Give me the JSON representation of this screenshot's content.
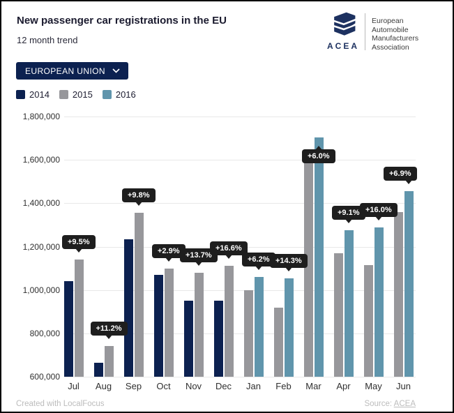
{
  "header": {
    "title": "New passenger car registrations in the EU",
    "subtitle": "12 month trend"
  },
  "logo": {
    "brand": "ACEA",
    "org_lines": [
      "European",
      "Automobile",
      "Manufacturers",
      "Association"
    ],
    "color": "#1d3160"
  },
  "controls": {
    "region_dropdown": {
      "value": "EUROPEAN UNION"
    }
  },
  "colors": {
    "navy": "#0c2150",
    "gray": "#97979b",
    "blue": "#6095ac",
    "badge_bg": "#1e1e1e",
    "badge_text": "#ffffff",
    "gridline": "#e8e8e8"
  },
  "chart_data": {
    "type": "bar",
    "title": "New passenger car registrations in the EU",
    "subtitle": "12 month trend",
    "categories": [
      "Jul",
      "Aug",
      "Sep",
      "Oct",
      "Nov",
      "Dec",
      "Jan",
      "Feb",
      "Mar",
      "Apr",
      "May",
      "Jun"
    ],
    "series": [
      {
        "name": "2014",
        "color": "#0c2150",
        "values": [
          1040000,
          665000,
          1235000,
          1070000,
          950000,
          950000,
          null,
          null,
          null,
          null,
          null,
          null
        ]
      },
      {
        "name": "2015",
        "color": "#97979b",
        "values": [
          1140000,
          740000,
          1355000,
          1100000,
          1080000,
          1110000,
          1000000,
          920000,
          1610000,
          1170000,
          1115000,
          1360000
        ]
      },
      {
        "name": "2016",
        "color": "#6095ac",
        "values": [
          null,
          null,
          null,
          null,
          null,
          null,
          1060000,
          1055000,
          1705000,
          1275000,
          1290000,
          1455000
        ]
      }
    ],
    "change_labels": [
      {
        "text": "+9.5%",
        "position": "above"
      },
      {
        "text": "+11.2%",
        "position": "above"
      },
      {
        "text": "+9.8%",
        "position": "above"
      },
      {
        "text": "+2.9%",
        "position": "above"
      },
      {
        "text": "+13.7%",
        "position": "above"
      },
      {
        "text": "+16.6%",
        "position": "above"
      },
      {
        "text": "+6.2%",
        "position": "above"
      },
      {
        "text": "+14.3%",
        "position": "above"
      },
      {
        "text": "+6.0%",
        "position": "below"
      },
      {
        "text": "+9.1%",
        "position": "above"
      },
      {
        "text": "+16.0%",
        "position": "above"
      },
      {
        "text": "+6.9%",
        "position": "above"
      }
    ],
    "ylim": [
      600000,
      1800000
    ],
    "yticks": [
      {
        "v": 600000,
        "label": "600,000"
      },
      {
        "v": 800000,
        "label": "800,000"
      },
      {
        "v": 1000000,
        "label": "1,000,000"
      },
      {
        "v": 1200000,
        "label": "1,200,000"
      },
      {
        "v": 1400000,
        "label": "1,400,000"
      },
      {
        "v": 1600000,
        "label": "1,600,000"
      },
      {
        "v": 1800000,
        "label": "1,800,000"
      }
    ],
    "grid": "horizontal",
    "legend_position": "top-left"
  },
  "footer": {
    "credit": "Created with LocalFocus",
    "source_prefix": "Source: ",
    "source_link": "ACEA"
  }
}
